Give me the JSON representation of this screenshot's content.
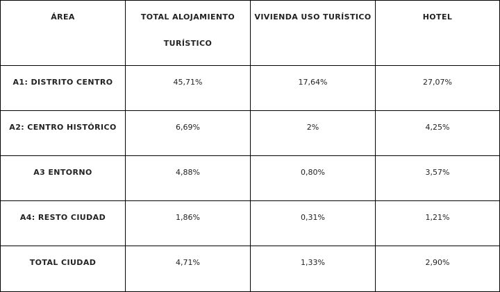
{
  "table": {
    "headers": [
      {
        "lines": [
          "ÁREA"
        ]
      },
      {
        "lines": [
          "TOTAL ALOJAMIENTO",
          "TURÍSTICO"
        ]
      },
      {
        "lines": [
          "VIVIENDA USO TURÍSTICO"
        ]
      },
      {
        "lines": [
          "HOTEL"
        ]
      }
    ],
    "rows": [
      {
        "area": "A1: DISTRITO CENTRO",
        "total": "45,71%",
        "vivienda": "17,64%",
        "hotel": "27,07%"
      },
      {
        "area": "A2: CENTRO HISTÓRICO",
        "total": "6,69%",
        "vivienda": "2%",
        "hotel": "4,25%"
      },
      {
        "area": "A3 ENTORNO",
        "total": "4,88%",
        "vivienda": "0,80%",
        "hotel": "3,57%"
      },
      {
        "area": "A4: RESTO CIUDAD",
        "total": "1,86%",
        "vivienda": "0,31%",
        "hotel": "1,21%"
      },
      {
        "area": "TOTAL CIUDAD",
        "total": "4,71%",
        "vivienda": "1,33%",
        "hotel": "2,90%"
      }
    ]
  }
}
